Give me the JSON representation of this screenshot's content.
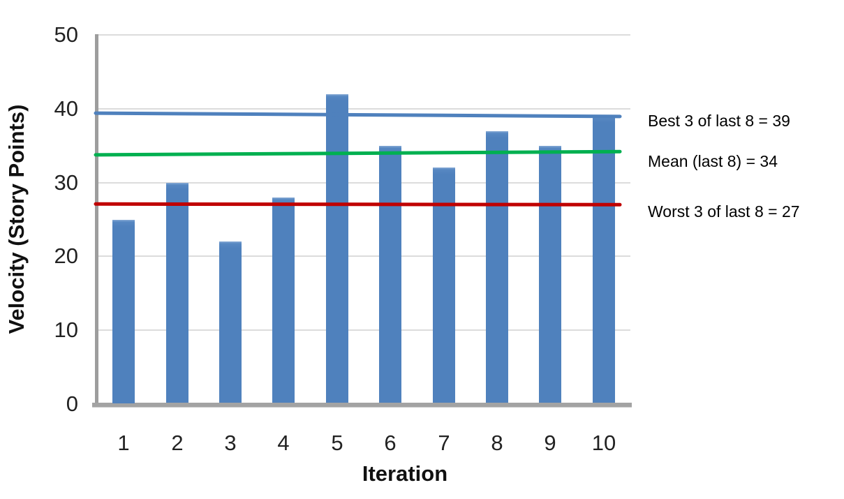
{
  "chart_data": {
    "type": "bar",
    "title": "",
    "xlabel": "Iteration",
    "ylabel": "Velocity (Story Points)",
    "categories": [
      "1",
      "2",
      "3",
      "4",
      "5",
      "6",
      "7",
      "8",
      "9",
      "10"
    ],
    "values": [
      25,
      30,
      22,
      28,
      42,
      35,
      32,
      37,
      35,
      39
    ],
    "ylim": [
      0,
      50
    ],
    "yticks": [
      0,
      10,
      20,
      30,
      40,
      50
    ],
    "ytick_labels": [
      "0",
      "10",
      "20",
      "30",
      "40",
      "50"
    ],
    "grid": "horizontal-major",
    "legend": "none",
    "bar_color": "#4f81bd",
    "reference_lines": [
      {
        "label": "Best 3 of last 8 = 39",
        "value": 39,
        "start_value": 39.4,
        "end_value": 38.95,
        "color": "#4f81bd"
      },
      {
        "label": "Mean (last 8) = 34",
        "value": 34,
        "start_value": 33.75,
        "end_value": 34.2,
        "color": "#00b050"
      },
      {
        "label": "Worst 3 of last 8 = 27",
        "value": 27,
        "start_value": 27.1,
        "end_value": 27.0,
        "color": "#c00000"
      }
    ]
  },
  "colors": {
    "background": "#ffffff",
    "bar": "#4f81bd",
    "gridline": "#dcdcdc",
    "axis_line": "#9d9d9d",
    "text": "#111111"
  }
}
